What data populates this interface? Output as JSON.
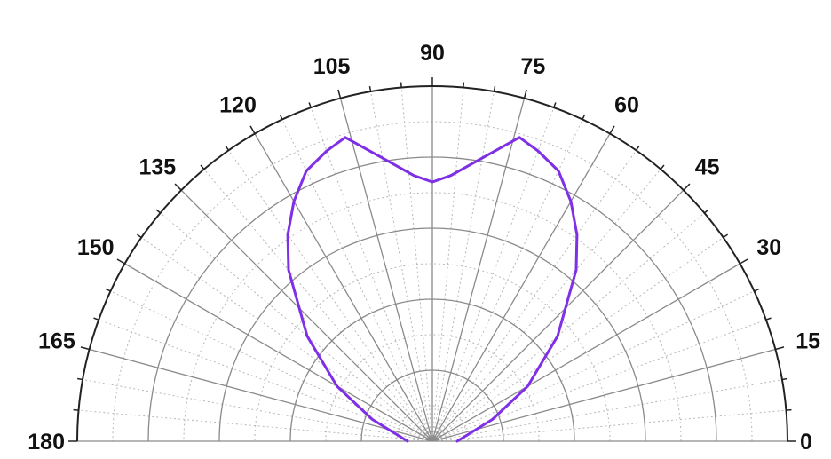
{
  "chart_data": {
    "type": "polar-line",
    "title": "",
    "angular_axis": {
      "unit": "degrees",
      "range": [
        0,
        180
      ],
      "tick_labels": [
        "0",
        "15",
        "30",
        "45",
        "60",
        "75",
        "90",
        "105",
        "120",
        "135",
        "150",
        "165",
        "180"
      ],
      "tick_values": [
        0,
        15,
        30,
        45,
        60,
        75,
        90,
        105,
        120,
        135,
        150,
        165,
        180
      ],
      "minor_step": 5
    },
    "radial_axis": {
      "range": [
        0,
        1
      ],
      "major_rings": [
        0.2,
        0.4,
        0.6,
        0.8,
        1.0
      ],
      "minor_rings": [
        0.1,
        0.3,
        0.5,
        0.7,
        0.9
      ],
      "tick_labels_shown": false
    },
    "grid": true,
    "series": [
      {
        "color": "#7F2FE6",
        "points": [
          {
            "angle": 0,
            "r": 0.07
          },
          {
            "angle": 20,
            "r": 0.18
          },
          {
            "angle": 30,
            "r": 0.31
          },
          {
            "angle": 40,
            "r": 0.46
          },
          {
            "angle": 50,
            "r": 0.63
          },
          {
            "angle": 55,
            "r": 0.71
          },
          {
            "angle": 60,
            "r": 0.78
          },
          {
            "angle": 65,
            "r": 0.84
          },
          {
            "angle": 70,
            "r": 0.87
          },
          {
            "angle": 74,
            "r": 0.89
          },
          {
            "angle": 80,
            "r": 0.81
          },
          {
            "angle": 86,
            "r": 0.75
          },
          {
            "angle": 90,
            "r": 0.73
          },
          {
            "angle": 94,
            "r": 0.75
          },
          {
            "angle": 100,
            "r": 0.81
          },
          {
            "angle": 106,
            "r": 0.89
          },
          {
            "angle": 110,
            "r": 0.87
          },
          {
            "angle": 115,
            "r": 0.84
          },
          {
            "angle": 120,
            "r": 0.78
          },
          {
            "angle": 125,
            "r": 0.71
          },
          {
            "angle": 130,
            "r": 0.63
          },
          {
            "angle": 140,
            "r": 0.46
          },
          {
            "angle": 150,
            "r": 0.31
          },
          {
            "angle": 160,
            "r": 0.18
          },
          {
            "angle": 180,
            "r": 0.07
          }
        ]
      }
    ]
  }
}
